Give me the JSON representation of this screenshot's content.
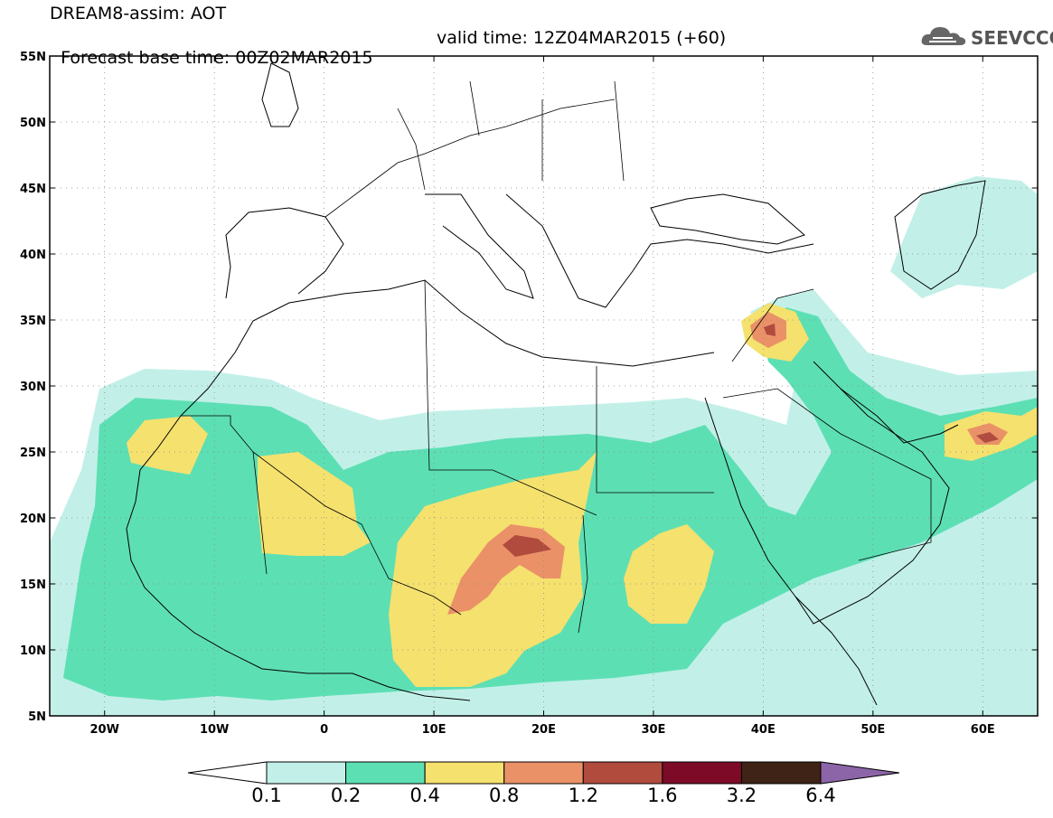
{
  "title": {
    "line1": "DREAM8-assim: AOT",
    "line2_left": "Forecast base time: 00Z02MAR2015",
    "line2_right": "valid time: 12Z04MAR2015 (+60)"
  },
  "logo": {
    "text": "SEEVCCC",
    "icon": "cloud-icon"
  },
  "map": {
    "lon_range": [
      -25,
      65
    ],
    "lat_range": [
      5,
      55
    ],
    "lat_ticks": [
      {
        "lat": 55,
        "label": "55N"
      },
      {
        "lat": 50,
        "label": "50N"
      },
      {
        "lat": 45,
        "label": "45N"
      },
      {
        "lat": 40,
        "label": "40N"
      },
      {
        "lat": 35,
        "label": "35N"
      },
      {
        "lat": 30,
        "label": "30N"
      },
      {
        "lat": 25,
        "label": "25N"
      },
      {
        "lat": 20,
        "label": "20N"
      },
      {
        "lat": 15,
        "label": "15N"
      },
      {
        "lat": 10,
        "label": "10N"
      },
      {
        "lat": 5,
        "label": "5N"
      }
    ],
    "lon_ticks": [
      {
        "lon": -20,
        "label": "20W"
      },
      {
        "lon": -10,
        "label": "10W"
      },
      {
        "lon": 0,
        "label": "0"
      },
      {
        "lon": 10,
        "label": "10E"
      },
      {
        "lon": 20,
        "label": "20E"
      },
      {
        "lon": 30,
        "label": "30E"
      },
      {
        "lon": 40,
        "label": "40E"
      },
      {
        "lon": 50,
        "label": "50E"
      },
      {
        "lon": 60,
        "label": "60E"
      }
    ],
    "grid": "dotted"
  },
  "colorbar": {
    "colors": [
      "#ffffff",
      "#c2f0e8",
      "#5ddfb4",
      "#f5e16e",
      "#ea9168",
      "#b04b3e",
      "#7d0b28",
      "#3e2316",
      "#8c65a8"
    ],
    "labels": [
      "0.1",
      "0.2",
      "0.4",
      "0.8",
      "1.2",
      "1.6",
      "3.2",
      "6.4"
    ]
  }
}
